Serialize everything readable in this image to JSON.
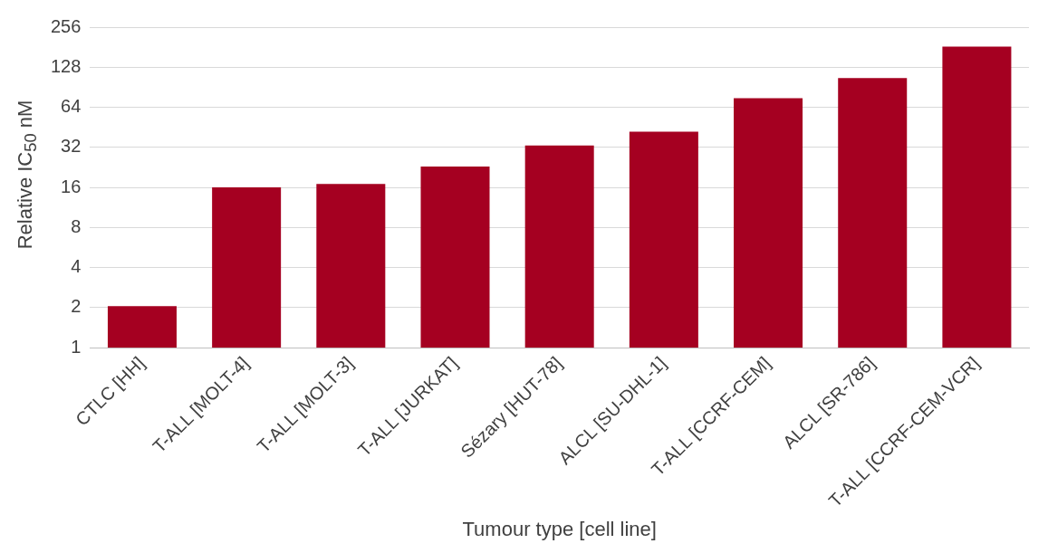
{
  "chart_data": {
    "type": "bar",
    "xlabel": "Tumour type [cell line]",
    "ylabel": "Relative IC$_{50}$ nM",
    "categories": [
      "CTLC [HH]",
      "T-ALL [MOLT-4]",
      "T-ALL [MOLT-3]",
      "T-ALL [JURKAT]",
      "Sézary [HUT-78]",
      "ALCL [SU-DHL-1]",
      "T-ALL [CCRF-CEM]",
      "ALCL [SR-786]",
      "T-ALL [CCRF-CEM-VCR]"
    ],
    "values": [
      2.05,
      16,
      17,
      23,
      33,
      42,
      75,
      106,
      183
    ],
    "color": "#a50021",
    "log": "y",
    "ylim": [
      1,
      256
    ],
    "yticks": [
      1,
      2,
      4,
      8,
      16,
      32,
      64,
      128,
      256
    ],
    "grid": "y",
    "legend": false
  }
}
